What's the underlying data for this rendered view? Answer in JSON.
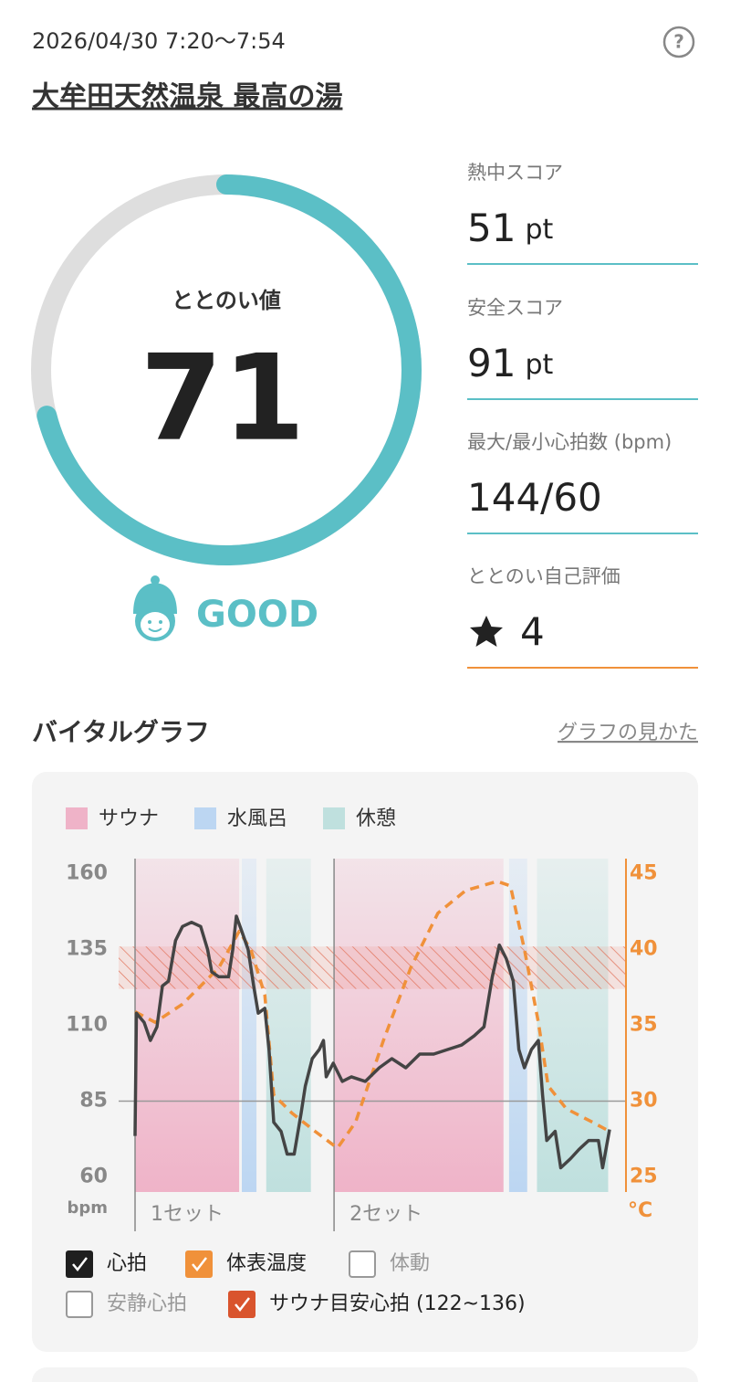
{
  "header": {
    "datetime": "2026/04/30 7:20～7:54",
    "facility": "大牟田天然温泉 最高の湯"
  },
  "score": {
    "label": "ととのい値",
    "value": 71,
    "ring_lim": [
      0,
      100
    ],
    "rating": "GOOD",
    "color": "#5bbfc6"
  },
  "stats": [
    {
      "label": "熱中スコア",
      "value": 51,
      "unit": "pt",
      "color": "#5bbfc6"
    },
    {
      "label": "安全スコア",
      "value": 91,
      "unit": "pt",
      "color": "#5bbfc6"
    },
    {
      "label": "最大/最小心拍数 (bpm)",
      "value": "144/60",
      "color": "#5bbfc6"
    },
    {
      "label": "ととのい自己評価",
      "value": 4,
      "color": "#f0913a"
    }
  ],
  "section": {
    "title": "バイタルグラフ",
    "link": "グラフの見かた"
  },
  "chart_data": {
    "type": "line",
    "legend": [
      {
        "name": "サウナ",
        "color": "#efb3c8"
      },
      {
        "name": "水風呂",
        "color": "#bcd6f2"
      },
      {
        "name": "休憩",
        "color": "#bfe0de"
      }
    ],
    "zones": [
      {
        "legend": 0,
        "x": [
          0,
          7.46
        ]
      },
      {
        "legend": 1,
        "x": [
          7.65,
          8.7
        ]
      },
      {
        "legend": 2,
        "x": [
          9.4,
          12.6
        ]
      },
      {
        "legend": 0,
        "x": [
          14.3,
          26.4
        ]
      },
      {
        "legend": 1,
        "x": [
          26.8,
          28.1
        ]
      },
      {
        "legend": 2,
        "x": [
          28.8,
          33.9
        ]
      }
    ],
    "sets": [
      {
        "label": "1セット",
        "x": 0
      },
      {
        "label": "2セット",
        "x": 14.26
      }
    ],
    "xlim": [
      0,
      34
    ],
    "ylim": [
      55,
      165
    ],
    "yticks": [
      60,
      85,
      110,
      135,
      160
    ],
    "y_unit": "bpm",
    "y2lim": [
      24,
      46
    ],
    "y2ticks": [
      25,
      30,
      35,
      40,
      45
    ],
    "y2_unit": "°C",
    "hline": 85,
    "target_range": [
      122,
      136
    ],
    "series": [
      {
        "name": "心拍",
        "color": "#444444",
        "x": [
          0,
          0.1,
          0.65,
          1.1,
          1.57,
          1.96,
          2.4,
          2.9,
          3.4,
          4.05,
          4.7,
          5.2,
          5.5,
          6.0,
          6.7,
          7.0,
          7.26,
          7.65,
          8.1,
          8.5,
          8.83,
          9.3,
          9.6,
          9.94,
          10.46,
          10.9,
          11.4,
          11.9,
          12.2,
          12.7,
          13.2,
          13.5,
          13.7,
          14.2,
          14.85,
          15.5,
          16.5,
          17.5,
          18.4,
          19.4,
          20.4,
          21.4,
          22.4,
          23.4,
          24.3,
          25.0,
          25.6,
          26.1,
          26.6,
          27.1,
          27.5,
          27.9,
          28.4,
          28.9,
          29.2,
          29.5,
          30.1,
          30.5,
          31.2,
          31.8,
          32.5,
          33.2,
          33.5,
          34
        ],
        "values": [
          73.5,
          114,
          111,
          105,
          109.5,
          123,
          124.6,
          138,
          142.6,
          144,
          142.6,
          135,
          127.6,
          126,
          126,
          135,
          146,
          141,
          135,
          123,
          114,
          115.6,
          102,
          78,
          75,
          67.5,
          67.5,
          81,
          90,
          99,
          102,
          105,
          93,
          97.5,
          91.5,
          93,
          91.5,
          96,
          99,
          96,
          100.5,
          100.5,
          102,
          103.5,
          106.5,
          109.5,
          126,
          136.5,
          132,
          124.6,
          102,
          96,
          102,
          105,
          87,
          72,
          75,
          63,
          66,
          69,
          72,
          72,
          63,
          75.6
        ]
      },
      {
        "name": "体表温度",
        "color": "#f0913a",
        "axis": "y2",
        "dashed": true,
        "x": [
          0,
          1.44,
          3.4,
          6.0,
          7.46,
          8.3,
          9.3,
          9.94,
          11.25,
          12.9,
          14.5,
          15.8,
          17.8,
          19.75,
          21.7,
          23.7,
          25.95,
          26.9,
          27.9,
          28.9,
          29.6,
          30.9,
          32.8,
          34
        ],
        "values": [
          35.9,
          35.2,
          36.4,
          38.8,
          41.2,
          40.0,
          37.0,
          30.4,
          29.2,
          28.0,
          26.9,
          28.6,
          34.0,
          38.8,
          42.4,
          43.9,
          44.5,
          44.2,
          40.0,
          35.2,
          31.0,
          29.5,
          28.6,
          28.0
        ]
      }
    ]
  },
  "toggles": [
    {
      "label": "心拍",
      "checked": true,
      "color": "#1f1f1f"
    },
    {
      "label": "体表温度",
      "checked": true,
      "color": "#f0913a"
    },
    {
      "label": "体動",
      "checked": false,
      "color": "#999999"
    },
    {
      "label": "安静心拍",
      "checked": false,
      "color": "#999999"
    },
    {
      "label": "サウナ目安心拍 (122~136)",
      "checked": true,
      "color": "#d9542d"
    }
  ]
}
